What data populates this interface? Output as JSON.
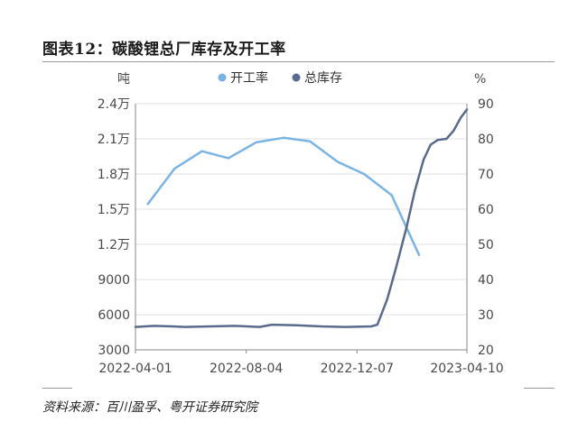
{
  "figure_title": "图表12：碳酸锂总厂库存及开工率",
  "source_note": "资料来源：百川盈孚、粤开证券研究院",
  "colors": {
    "line_rate": "#7ab4e5",
    "line_inventory": "#5a6a8c",
    "grid": "#e1e1e1",
    "axis_text": "#4a4a4a"
  },
  "chart_data": {
    "type": "line",
    "left_axis_unit": "吨",
    "right_axis_unit": "%",
    "left_ylim": [
      3000,
      24000
    ],
    "left_ticks": [
      3000,
      6000,
      9000,
      12000,
      15000,
      18000,
      21000,
      24000
    ],
    "left_tick_labels": [
      "3000",
      "6000",
      "9000",
      "1.2万",
      "1.5万",
      "1.8万",
      "2.1万",
      "2.4万"
    ],
    "right_ylim": [
      20,
      90
    ],
    "right_ticks": [
      20,
      30,
      40,
      50,
      60,
      70,
      80,
      90
    ],
    "right_tick_labels": [
      "20",
      "30",
      "40",
      "50",
      "60",
      "70",
      "80",
      "90"
    ],
    "x_range": [
      "2022-04-01",
      "2023-04-10"
    ],
    "x_tick_labels": [
      "2022-04-01",
      "2022-08-04",
      "2022-12-07",
      "2023-04-10"
    ],
    "grid": true,
    "legend_position": "top",
    "series": [
      {
        "name": "开工率",
        "axis": "right",
        "color": "#7ab4e5",
        "points": [
          [
            "2022-04-15",
            61.5
          ],
          [
            "2022-05-15",
            71.5
          ],
          [
            "2022-06-15",
            76.5
          ],
          [
            "2022-07-15",
            74.5
          ],
          [
            "2022-08-15",
            79.0
          ],
          [
            "2022-09-15",
            80.3
          ],
          [
            "2022-10-15",
            79.3
          ],
          [
            "2022-11-15",
            73.5
          ],
          [
            "2022-12-15",
            70.0
          ],
          [
            "2023-01-15",
            64.0
          ],
          [
            "2023-02-15",
            47.0
          ]
        ]
      },
      {
        "name": "总库存",
        "axis": "left",
        "color": "#5a6a8c",
        "points": [
          [
            "2022-04-01",
            4950
          ],
          [
            "2022-04-22",
            5050
          ],
          [
            "2022-05-13",
            5000
          ],
          [
            "2022-05-27",
            4950
          ],
          [
            "2022-06-24",
            5000
          ],
          [
            "2022-07-22",
            5050
          ],
          [
            "2022-08-19",
            4950
          ],
          [
            "2022-09-02",
            5150
          ],
          [
            "2022-09-30",
            5100
          ],
          [
            "2022-10-28",
            5000
          ],
          [
            "2022-11-25",
            4950
          ],
          [
            "2022-12-23",
            5000
          ],
          [
            "2022-12-30",
            5150
          ],
          [
            "2023-01-10",
            7300
          ],
          [
            "2023-01-20",
            10000
          ],
          [
            "2023-02-01",
            13500
          ],
          [
            "2023-02-10",
            16500
          ],
          [
            "2023-02-20",
            19200
          ],
          [
            "2023-02-28",
            20500
          ],
          [
            "2023-03-08",
            20900
          ],
          [
            "2023-03-18",
            21000
          ],
          [
            "2023-03-26",
            21700
          ],
          [
            "2023-04-03",
            22800
          ],
          [
            "2023-04-10",
            23500
          ]
        ]
      }
    ]
  }
}
